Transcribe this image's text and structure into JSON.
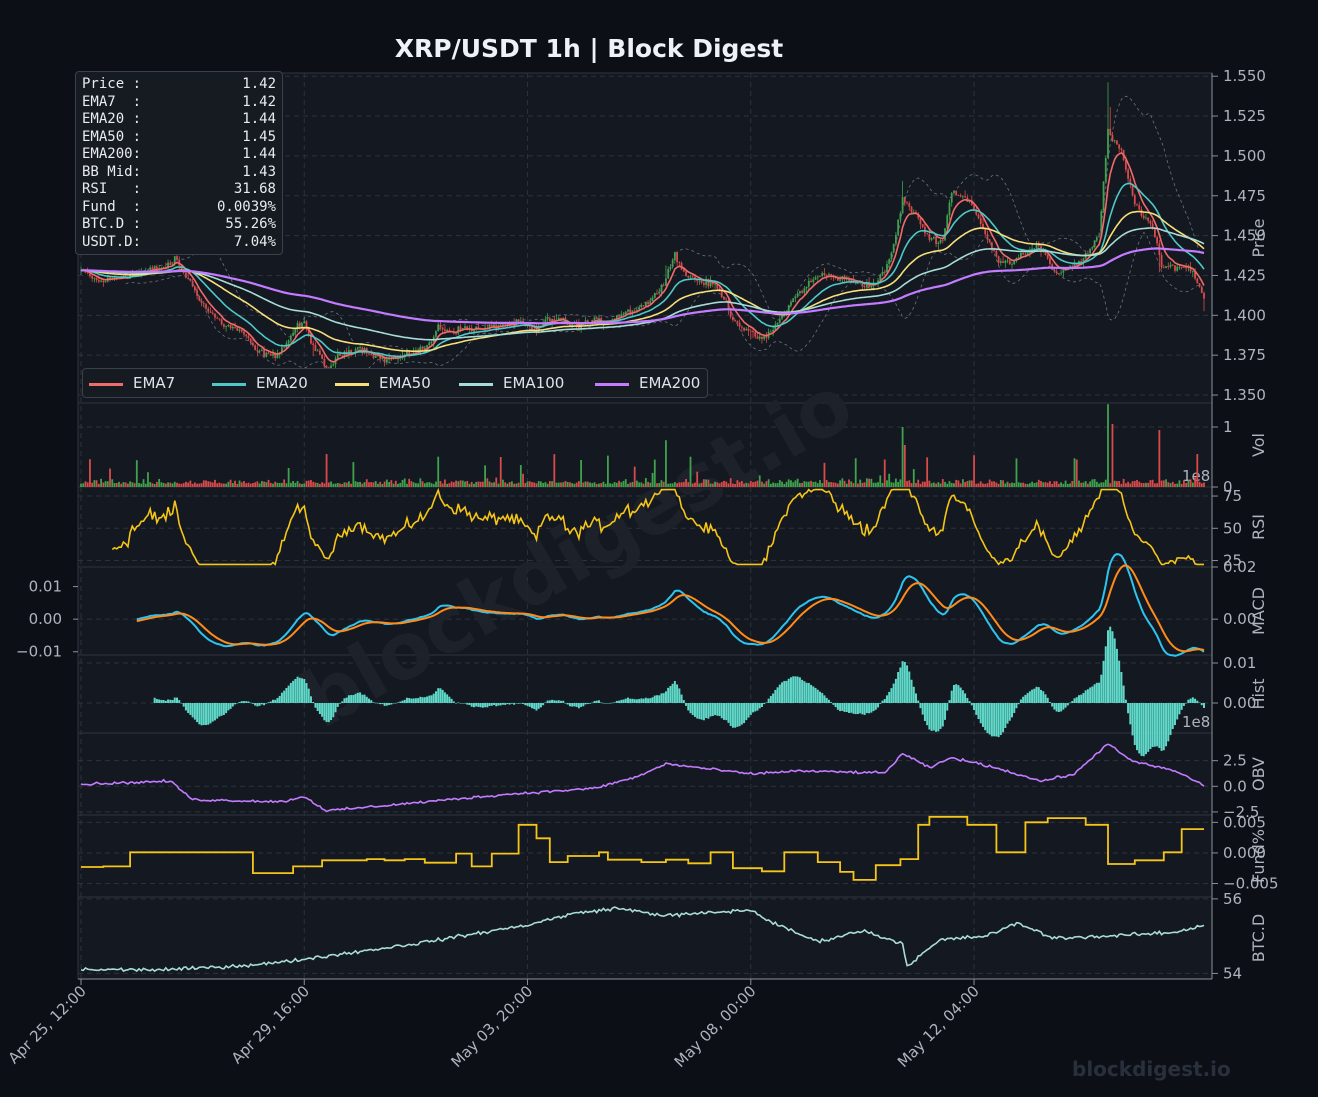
{
  "title": "XRP/USDT  1h  |  Block Digest",
  "watermark": "blockdigest.io",
  "background_watermark": "blockdigest.io",
  "colors": {
    "background": "#0c0f16",
    "panel": "#141820",
    "grid": "#2c323d",
    "candle_up": "#3fa34d",
    "candle_down": "#d84b4b",
    "ema7": "#f06b6b",
    "ema20": "#4ec8c8",
    "ema50": "#f7e07a",
    "ema100": "#a8dcd8",
    "ema200": "#c37bff",
    "rsi": "#f5c518",
    "macd": "#2ec4f0",
    "signal": "#ff8c1a",
    "hist": "#5fd9c9",
    "obv": "#c37bff",
    "funding": "#f5c518",
    "btcd": "#a8dcd8"
  },
  "info": {
    "rows": [
      {
        "label": "Price :",
        "value": "1.42"
      },
      {
        "label": "EMA7  :",
        "value": "1.42"
      },
      {
        "label": "EMA20 :",
        "value": "1.44"
      },
      {
        "label": "EMA50 :",
        "value": "1.45"
      },
      {
        "label": "EMA200:",
        "value": "1.44"
      },
      {
        "label": "BB Mid:",
        "value": "1.43"
      },
      {
        "label": "RSI   :",
        "value": "31.68"
      },
      {
        "label": "Fund  :",
        "value": "0.0039%"
      },
      {
        "label": "BTC.D :",
        "value": "55.26%"
      },
      {
        "label": "USDT.D:",
        "value": "7.04%"
      }
    ]
  },
  "legend": [
    {
      "name": "EMA7",
      "color": "#f06b6b"
    },
    {
      "name": "EMA20",
      "color": "#4ec8c8"
    },
    {
      "name": "EMA50",
      "color": "#f7e07a"
    },
    {
      "name": "EMA100",
      "color": "#a8dcd8"
    },
    {
      "name": "EMA200",
      "color": "#c37bff"
    }
  ],
  "chart_data": {
    "type": "line",
    "x_ticks": [
      "Apr 25, 12:00",
      "Apr 29, 16:00",
      "May 03, 20:00",
      "May 08, 00:00",
      "May 12, 04:00"
    ],
    "x_range_hours": [
      0,
      503
    ],
    "tick_hours": [
      0,
      100,
      200,
      300,
      400
    ],
    "panels": [
      {
        "id": "price",
        "ylabel": "Price",
        "ylim": [
          1.345,
          1.552
        ],
        "ticks": [
          "1.350",
          "1.375",
          "1.400",
          "1.425",
          "1.450",
          "1.475",
          "1.500",
          "1.525",
          "1.550"
        ],
        "tick_values": [
          1.35,
          1.375,
          1.4,
          1.425,
          1.45,
          1.475,
          1.5,
          1.525,
          1.55
        ],
        "price_anchors": [
          [
            0,
            1.428
          ],
          [
            8,
            1.421
          ],
          [
            18,
            1.424
          ],
          [
            30,
            1.428
          ],
          [
            40,
            1.431
          ],
          [
            42,
            1.436
          ],
          [
            50,
            1.418
          ],
          [
            56,
            1.404
          ],
          [
            64,
            1.394
          ],
          [
            72,
            1.39
          ],
          [
            78,
            1.378
          ],
          [
            86,
            1.374
          ],
          [
            92,
            1.382
          ],
          [
            96,
            1.392
          ],
          [
            100,
            1.395
          ],
          [
            104,
            1.381
          ],
          [
            110,
            1.366
          ],
          [
            116,
            1.375
          ],
          [
            124,
            1.38
          ],
          [
            136,
            1.372
          ],
          [
            144,
            1.374
          ],
          [
            150,
            1.378
          ],
          [
            156,
            1.381
          ],
          [
            160,
            1.393
          ],
          [
            166,
            1.39
          ],
          [
            172,
            1.392
          ],
          [
            180,
            1.391
          ],
          [
            188,
            1.394
          ],
          [
            196,
            1.395
          ],
          [
            200,
            1.393
          ],
          [
            204,
            1.389
          ],
          [
            208,
            1.397
          ],
          [
            214,
            1.398
          ],
          [
            220,
            1.393
          ],
          [
            228,
            1.396
          ],
          [
            236,
            1.397
          ],
          [
            244,
            1.402
          ],
          [
            250,
            1.405
          ],
          [
            256,
            1.41
          ],
          [
            262,
            1.424
          ],
          [
            266,
            1.439
          ],
          [
            270,
            1.426
          ],
          [
            278,
            1.421
          ],
          [
            284,
            1.419
          ],
          [
            288,
            1.411
          ],
          [
            292,
            1.398
          ],
          [
            300,
            1.388
          ],
          [
            306,
            1.385
          ],
          [
            312,
            1.395
          ],
          [
            320,
            1.412
          ],
          [
            326,
            1.42
          ],
          [
            332,
            1.426
          ],
          [
            340,
            1.423
          ],
          [
            348,
            1.421
          ],
          [
            354,
            1.418
          ],
          [
            360,
            1.427
          ],
          [
            364,
            1.444
          ],
          [
            368,
            1.473
          ],
          [
            372,
            1.466
          ],
          [
            376,
            1.458
          ],
          [
            380,
            1.448
          ],
          [
            386,
            1.447
          ],
          [
            390,
            1.478
          ],
          [
            398,
            1.472
          ],
          [
            404,
            1.454
          ],
          [
            410,
            1.436
          ],
          [
            416,
            1.433
          ],
          [
            420,
            1.437
          ],
          [
            428,
            1.444
          ],
          [
            432,
            1.438
          ],
          [
            436,
            1.425
          ],
          [
            442,
            1.43
          ],
          [
            448,
            1.434
          ],
          [
            456,
            1.45
          ],
          [
            460,
            1.515
          ],
          [
            466,
            1.502
          ],
          [
            472,
            1.47
          ],
          [
            480,
            1.455
          ],
          [
            484,
            1.43
          ],
          [
            492,
            1.431
          ],
          [
            498,
            1.428
          ],
          [
            503,
            1.41
          ]
        ],
        "series": [
          {
            "name": "EMA7",
            "span": 7
          },
          {
            "name": "EMA20",
            "span": 20
          },
          {
            "name": "EMA50",
            "span": 50
          },
          {
            "name": "EMA100",
            "span": 100
          },
          {
            "name": "EMA200",
            "span": 200
          }
        ]
      },
      {
        "id": "volume",
        "ylabel": "Vol",
        "ylim": [
          0,
          1.4
        ],
        "ticks": [
          "0",
          "1"
        ],
        "tick_values": [
          0,
          1
        ],
        "offset_text": "1e8"
      },
      {
        "id": "rsi",
        "ylabel": "RSI",
        "ylim": [
          20,
          82
        ],
        "ticks": [
          "25",
          "50",
          "75"
        ],
        "tick_values": [
          25,
          50,
          75
        ],
        "last": 31.68
      },
      {
        "id": "macd",
        "ylabel": "MACD",
        "ylim": [
          -0.011,
          0.016
        ],
        "ticks_left": [
          "−0.01",
          "0.00",
          "0.01"
        ],
        "ticks_right": [
          "0.00",
          "0.02"
        ],
        "ticks_right_values": [
          0.0,
          0.016
        ],
        "ticks_left_values": [
          -0.01,
          0.0,
          0.01
        ],
        "series": [
          {
            "name": "MACD"
          },
          {
            "name": "Signal"
          }
        ]
      },
      {
        "id": "hist",
        "ylabel": "Hist",
        "ylim": [
          -0.0075,
          0.012
        ],
        "ticks": [
          "0.00",
          "0.01"
        ],
        "tick_values": [
          0.0,
          0.01
        ],
        "offset_text": "1e8"
      },
      {
        "id": "obv",
        "ylabel": "OBV",
        "ylim": [
          -2.8,
          5.2
        ],
        "ticks": [
          "−2.5",
          "0.0",
          "2.5"
        ],
        "tick_values": [
          -2.5,
          0,
          2.5
        ]
      },
      {
        "id": "funding",
        "ylabel": "Fund%",
        "ylim": [
          -0.0072,
          0.0062
        ],
        "ticks": [
          "−0.005",
          "0.000",
          "0.005"
        ],
        "tick_values": [
          -0.005,
          0,
          0.005
        ],
        "last": 0.0039
      },
      {
        "id": "btcd",
        "ylabel": "BTC.D",
        "ylim": [
          53.85,
          56.05
        ],
        "ticks": [
          "54",
          "56"
        ],
        "tick_values": [
          54,
          56
        ],
        "last": 55.26
      }
    ]
  }
}
